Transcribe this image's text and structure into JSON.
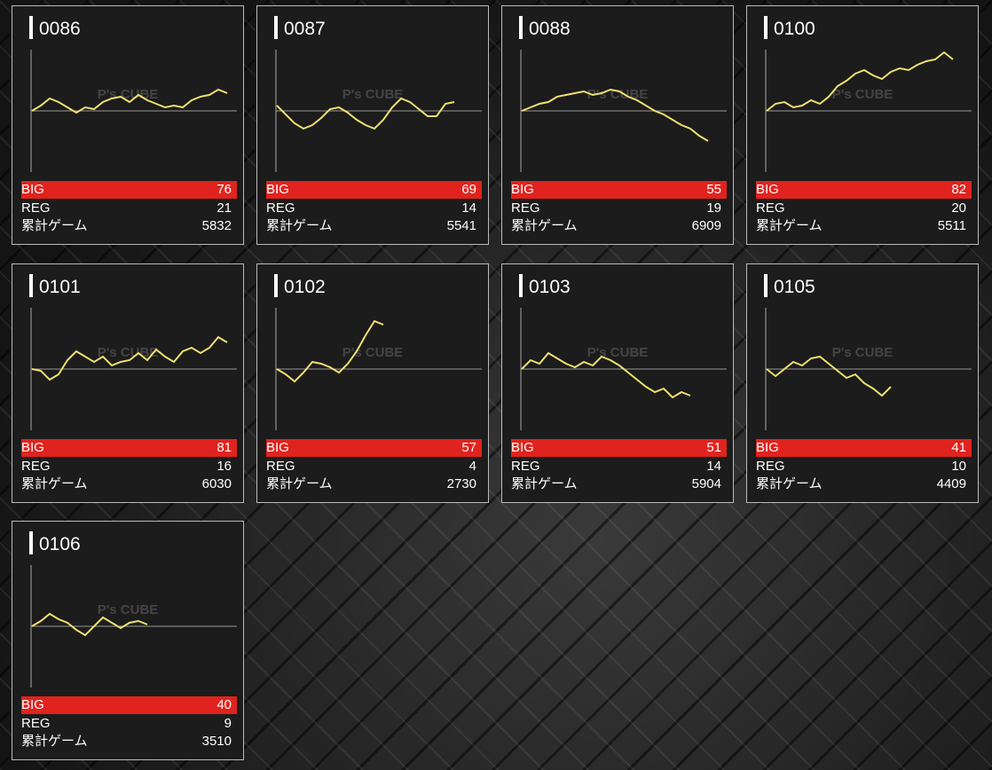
{
  "labels": {
    "big": "BIG",
    "reg": "REG",
    "games": "累計ゲーム"
  },
  "watermark": "P's CUBE",
  "cards": [
    {
      "id": "0086",
      "big": 76,
      "reg": 21,
      "games": 5832,
      "graph": [
        0,
        6,
        14,
        10,
        4,
        -2,
        4,
        2,
        10,
        14,
        16,
        10,
        18,
        12,
        8,
        4,
        6,
        4,
        12,
        16,
        18,
        24,
        20
      ]
    },
    {
      "id": "0087",
      "big": 69,
      "reg": 14,
      "games": 5541,
      "graph": [
        6,
        -4,
        -14,
        -20,
        -16,
        -8,
        2,
        4,
        -2,
        -10,
        -16,
        -20,
        -10,
        4,
        14,
        10,
        2,
        -6,
        -6,
        8,
        10
      ]
    },
    {
      "id": "0088",
      "big": 55,
      "reg": 19,
      "games": 6909,
      "graph": [
        0,
        4,
        8,
        10,
        16,
        18,
        20,
        22,
        18,
        20,
        24,
        22,
        16,
        12,
        6,
        0,
        -4,
        -10,
        -16,
        -20,
        -28,
        -34
      ]
    },
    {
      "id": "0100",
      "big": 82,
      "reg": 20,
      "games": 5511,
      "graph": [
        0,
        8,
        10,
        4,
        6,
        12,
        8,
        16,
        28,
        34,
        42,
        46,
        40,
        36,
        44,
        48,
        46,
        52,
        56,
        58,
        66,
        58
      ]
    },
    {
      "id": "0101",
      "big": 81,
      "reg": 16,
      "games": 6030,
      "graph": [
        0,
        -2,
        -12,
        -6,
        10,
        20,
        14,
        8,
        14,
        4,
        8,
        10,
        18,
        10,
        22,
        14,
        8,
        20,
        24,
        18,
        24,
        36,
        30
      ]
    },
    {
      "id": "0102",
      "big": 57,
      "reg": 4,
      "games": 2730,
      "graph": [
        0,
        -6,
        -14,
        -4,
        8,
        6,
        2,
        -4,
        6,
        20,
        38,
        54,
        50
      ]
    },
    {
      "id": "0103",
      "big": 51,
      "reg": 14,
      "games": 5904,
      "graph": [
        0,
        10,
        6,
        18,
        12,
        6,
        2,
        8,
        4,
        14,
        10,
        4,
        -4,
        -12,
        -20,
        -26,
        -22,
        -32,
        -26,
        -30
      ]
    },
    {
      "id": "0105",
      "big": 41,
      "reg": 10,
      "games": 4409,
      "graph": [
        0,
        -8,
        0,
        8,
        4,
        12,
        14,
        6,
        -2,
        -10,
        -6,
        -16,
        -22,
        -30,
        -20
      ]
    },
    {
      "id": "0106",
      "big": 40,
      "reg": 9,
      "games": 3510,
      "graph": [
        0,
        6,
        14,
        8,
        4,
        -4,
        -10,
        0,
        10,
        4,
        -2,
        4,
        6,
        2
      ]
    }
  ]
}
